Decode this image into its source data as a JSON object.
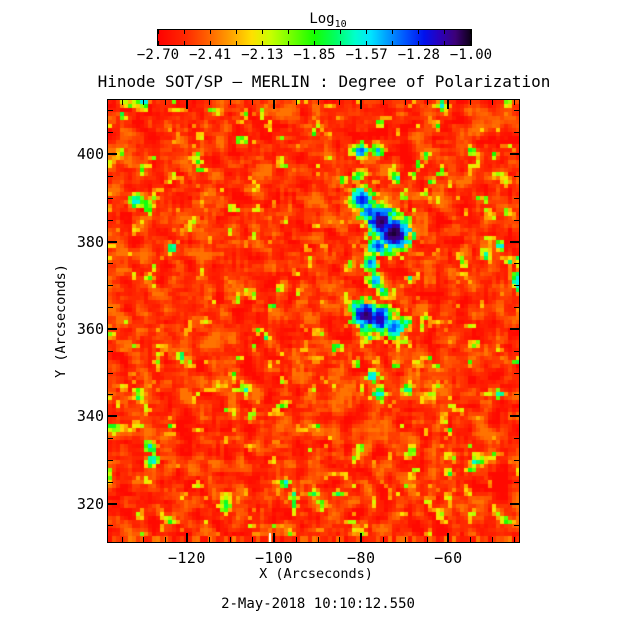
{
  "title": "Hinode SOT/SP — MERLIN : Degree of Polarization",
  "header": {
    "colorbar_title": "Log",
    "colorbar_title_sub": "10"
  },
  "footer": {
    "timestamp": "2-May-2018 10:10:12.550"
  },
  "chart_data": {
    "type": "heatmap",
    "title": "Hinode SOT/SP — MERLIN : Degree of Polarization",
    "xlabel": "X (Arcseconds)",
    "ylabel": "Y (Arcseconds)",
    "timestamp": "2-May-2018 10:10:12.550",
    "colorbar": {
      "title": "Log10",
      "tick_labels": [
        "−2.70",
        "−2.41",
        "−2.13",
        "−1.85",
        "−1.57",
        "−1.28",
        "−1.00"
      ],
      "value_min": -2.7,
      "value_max": -1.0,
      "n_ticks": 13
    },
    "x_axis": {
      "min": -138.1,
      "max": -43.8,
      "major_ticks": [
        -120,
        -100,
        -80,
        -60
      ],
      "minor_tick_step": 5
    },
    "y_axis": {
      "min": 311.2,
      "max": 412.4,
      "major_ticks": [
        400,
        380,
        360,
        340,
        320
      ],
      "minor_tick_step": 5
    },
    "colormap": [
      [
        0.0,
        "#ff0000"
      ],
      [
        0.09,
        "#ff2a00"
      ],
      [
        0.17,
        "#ff6a00"
      ],
      [
        0.24,
        "#ffa800"
      ],
      [
        0.3,
        "#ffe000"
      ],
      [
        0.36,
        "#c8ff00"
      ],
      [
        0.43,
        "#6eff00"
      ],
      [
        0.5,
        "#14ff00"
      ],
      [
        0.57,
        "#00ff66"
      ],
      [
        0.63,
        "#00ffcc"
      ],
      [
        0.68,
        "#00e4ff"
      ],
      [
        0.73,
        "#00a0ff"
      ],
      [
        0.79,
        "#0055ff"
      ],
      [
        0.85,
        "#0011ee"
      ],
      [
        0.9,
        "#2a00bb"
      ],
      [
        0.95,
        "#3c0077"
      ],
      [
        1.0,
        "#0c0016"
      ]
    ],
    "background": {
      "description": "Quiet-sun granulation noise: mostly red/orange (log10 DoP ~ -2.7 to -2.4) with scattered yellow-green network speckles up to ~ -1.9",
      "base_value_range": [
        -2.7,
        -2.42
      ],
      "speckle_values_up_to": -1.9,
      "seed": 20180502
    },
    "features_format": [
      "x_arcsec",
      "y_arcsec",
      "radius_arcsec",
      "peak_log10_value"
    ],
    "features": [
      [
        -80.1,
        400.8,
        1.1,
        -1.35
      ],
      [
        -76.3,
        400.8,
        0.9,
        -1.45
      ],
      [
        -81.0,
        394.7,
        0.9,
        -1.7
      ],
      [
        -79.9,
        389.6,
        1.6,
        -1.25
      ],
      [
        -78.2,
        386.8,
        1.4,
        -1.3
      ],
      [
        -75.4,
        384.6,
        2.1,
        -1.05
      ],
      [
        -72.6,
        382.0,
        2.3,
        -1.02
      ],
      [
        -76.3,
        379.0,
        1.4,
        -1.3
      ],
      [
        -77.9,
        375.0,
        1.1,
        -1.35
      ],
      [
        -76.8,
        371.1,
        1.1,
        -1.4
      ],
      [
        -75.1,
        368.7,
        0.9,
        -1.5
      ],
      [
        -66.9,
        397.7,
        0.7,
        -1.75
      ],
      [
        -64.1,
        393.7,
        0.7,
        -1.8
      ],
      [
        -70.2,
        390.1,
        0.7,
        -1.8
      ],
      [
        -81.5,
        365.0,
        1.1,
        -1.5
      ],
      [
        -78.9,
        363.1,
        1.8,
        -1.05
      ],
      [
        -75.9,
        362.3,
        2.1,
        -1.15
      ],
      [
        -72.6,
        360.3,
        1.6,
        -1.35
      ],
      [
        -69.7,
        361.3,
        0.9,
        -1.6
      ],
      [
        -77.5,
        349.2,
        0.9,
        -1.45
      ],
      [
        -75.9,
        345.1,
        1.1,
        -1.55
      ],
      [
        -69.3,
        346.1,
        0.9,
        -1.6
      ],
      [
        -72.1,
        351.7,
        0.7,
        -1.8
      ],
      [
        -131.7,
        389.3,
        1.1,
        -1.55
      ],
      [
        -128.9,
        387.6,
        0.9,
        -1.7
      ],
      [
        -123.5,
        378.5,
        0.7,
        -1.45
      ],
      [
        -128.7,
        371.9,
        0.7,
        -1.8
      ],
      [
        -128.4,
        333.0,
        0.9,
        -1.5
      ],
      [
        -127.9,
        329.9,
        0.9,
        -1.45
      ],
      [
        -97.4,
        324.6,
        0.7,
        -1.5
      ],
      [
        -95.5,
        322.0,
        0.7,
        -1.65
      ],
      [
        -48.0,
        379.0,
        0.7,
        -1.5
      ],
      [
        -48.3,
        345.1,
        0.7,
        -1.55
      ],
      [
        -54.6,
        400.8,
        0.7,
        -1.75
      ],
      [
        -59.8,
        326.9,
        0.7,
        -1.75
      ],
      [
        -91.0,
        404.8,
        0.6,
        -1.8
      ],
      [
        -134.8,
        408.9,
        0.6,
        -1.7
      ]
    ],
    "data_gaps": [
      {
        "x_arcsec": -101.0,
        "note": "narrow white missing-data column at bottom edge of map"
      }
    ]
  },
  "colors": {
    "background": "#ffffff",
    "axis": "#000000",
    "text": "#000000"
  }
}
